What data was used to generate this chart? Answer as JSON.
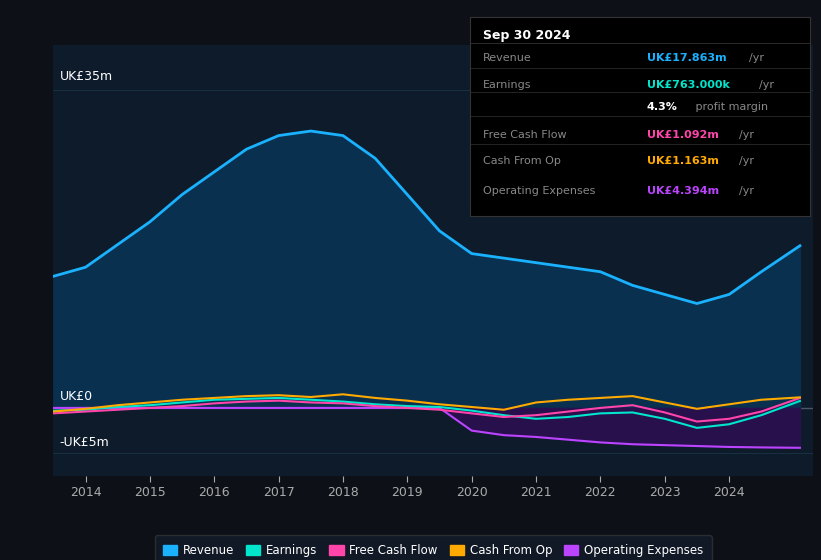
{
  "background_color": "#0d1117",
  "plot_bg_color": "#0d1b2a",
  "ylim": [
    -7.5,
    40
  ],
  "xlim": [
    2013.5,
    2025.3
  ],
  "ytick_labels": [
    "UK£35m",
    "UK£0",
    "-UK£5m"
  ],
  "ytick_vals": [
    35,
    0,
    -5
  ],
  "xticks": [
    2014,
    2015,
    2016,
    2017,
    2018,
    2019,
    2020,
    2021,
    2022,
    2023,
    2024
  ],
  "grid_color": "#1a2e42",
  "zero_line_color": "#4a5568",
  "revenue": {
    "color": "#1ab2ff",
    "fill_color": "#0a3050",
    "lw": 2.0,
    "x": [
      2013.5,
      2014.0,
      2014.5,
      2015.0,
      2015.5,
      2016.0,
      2016.5,
      2017.0,
      2017.5,
      2018.0,
      2018.5,
      2019.0,
      2019.5,
      2020.0,
      2020.5,
      2021.0,
      2021.5,
      2022.0,
      2022.5,
      2023.0,
      2023.5,
      2024.0,
      2024.5,
      2025.1
    ],
    "y": [
      14.5,
      15.5,
      18.0,
      20.5,
      23.5,
      26.0,
      28.5,
      30.0,
      30.5,
      30.0,
      27.5,
      23.5,
      19.5,
      17.0,
      16.5,
      16.0,
      15.5,
      15.0,
      13.5,
      12.5,
      11.5,
      12.5,
      15.0,
      17.863
    ]
  },
  "earnings": {
    "color": "#00e5cc",
    "lw": 1.5,
    "x": [
      2013.5,
      2014.0,
      2014.5,
      2015.0,
      2015.5,
      2016.0,
      2016.5,
      2017.0,
      2017.5,
      2018.0,
      2018.5,
      2019.0,
      2019.5,
      2020.0,
      2020.5,
      2021.0,
      2021.5,
      2022.0,
      2022.5,
      2023.0,
      2023.5,
      2024.0,
      2024.5,
      2025.1
    ],
    "y": [
      -0.3,
      -0.2,
      0.1,
      0.3,
      0.6,
      0.9,
      1.0,
      1.1,
      0.9,
      0.7,
      0.4,
      0.2,
      0.1,
      -0.3,
      -0.8,
      -1.2,
      -1.0,
      -0.6,
      -0.5,
      -1.2,
      -2.2,
      -1.8,
      -0.8,
      0.763
    ]
  },
  "free_cash_flow": {
    "color": "#ff44aa",
    "lw": 1.5,
    "x": [
      2013.5,
      2014.0,
      2014.5,
      2015.0,
      2015.5,
      2016.0,
      2016.5,
      2017.0,
      2017.5,
      2018.0,
      2018.5,
      2019.0,
      2019.5,
      2020.0,
      2020.5,
      2021.0,
      2021.5,
      2022.0,
      2022.5,
      2023.0,
      2023.5,
      2024.0,
      2024.5,
      2025.1
    ],
    "y": [
      -0.6,
      -0.4,
      -0.2,
      0.0,
      0.2,
      0.5,
      0.7,
      0.8,
      0.6,
      0.5,
      0.2,
      0.0,
      -0.2,
      -0.6,
      -1.0,
      -0.8,
      -0.4,
      0.0,
      0.3,
      -0.5,
      -1.5,
      -1.2,
      -0.4,
      1.092
    ]
  },
  "cash_from_op": {
    "color": "#ffaa00",
    "lw": 1.5,
    "x": [
      2013.5,
      2014.0,
      2014.5,
      2015.0,
      2015.5,
      2016.0,
      2016.5,
      2017.0,
      2017.5,
      2018.0,
      2018.5,
      2019.0,
      2019.5,
      2020.0,
      2020.5,
      2021.0,
      2021.5,
      2022.0,
      2022.5,
      2023.0,
      2023.5,
      2024.0,
      2024.5,
      2025.1
    ],
    "y": [
      -0.4,
      -0.1,
      0.3,
      0.6,
      0.9,
      1.1,
      1.3,
      1.4,
      1.2,
      1.5,
      1.1,
      0.8,
      0.4,
      0.1,
      -0.2,
      0.6,
      0.9,
      1.1,
      1.3,
      0.6,
      -0.1,
      0.4,
      0.9,
      1.163
    ]
  },
  "operating_expenses": {
    "color": "#bb44ff",
    "fill_color": "#2a1050",
    "lw": 1.5,
    "x": [
      2013.5,
      2014.0,
      2014.5,
      2015.0,
      2015.5,
      2016.0,
      2016.5,
      2017.0,
      2017.5,
      2018.0,
      2018.5,
      2019.0,
      2019.5,
      2020.0,
      2020.5,
      2021.0,
      2021.5,
      2022.0,
      2022.5,
      2023.0,
      2023.5,
      2024.0,
      2024.5,
      2025.1
    ],
    "y": [
      0.0,
      0.0,
      0.0,
      0.0,
      0.0,
      0.0,
      0.0,
      0.0,
      0.0,
      0.0,
      0.0,
      0.0,
      0.0,
      -2.5,
      -3.0,
      -3.2,
      -3.5,
      -3.8,
      -4.0,
      -4.1,
      -4.2,
      -4.3,
      -4.35,
      -4.394
    ]
  },
  "infobox": {
    "bg": "#000000",
    "border": "#333333",
    "title": "Sep 30 2024",
    "title_color": "#ffffff",
    "label_color": "#888888",
    "unit_color": "#888888",
    "rows": [
      {
        "label": "Revenue",
        "value": "UK£17.863m",
        "unit": "/yr",
        "vc": "#1ab2ff"
      },
      {
        "label": "Earnings",
        "value": "UK£763.000k",
        "unit": "/yr",
        "vc": "#00e5cc"
      },
      {
        "label": "",
        "value": "4.3%",
        "unit": " profit margin",
        "vc": "#ffffff"
      },
      {
        "label": "Free Cash Flow",
        "value": "UK£1.092m",
        "unit": "/yr",
        "vc": "#ff44aa"
      },
      {
        "label": "Cash From Op",
        "value": "UK£1.163m",
        "unit": "/yr",
        "vc": "#ffaa00"
      },
      {
        "label": "Operating Expenses",
        "value": "UK£4.394m",
        "unit": "/yr",
        "vc": "#bb44ff"
      }
    ],
    "sep_color": "#333333"
  },
  "legend": [
    {
      "label": "Revenue",
      "color": "#1ab2ff"
    },
    {
      "label": "Earnings",
      "color": "#00e5cc"
    },
    {
      "label": "Free Cash Flow",
      "color": "#ff44aa"
    },
    {
      "label": "Cash From Op",
      "color": "#ffaa00"
    },
    {
      "label": "Operating Expenses",
      "color": "#bb44ff"
    }
  ]
}
